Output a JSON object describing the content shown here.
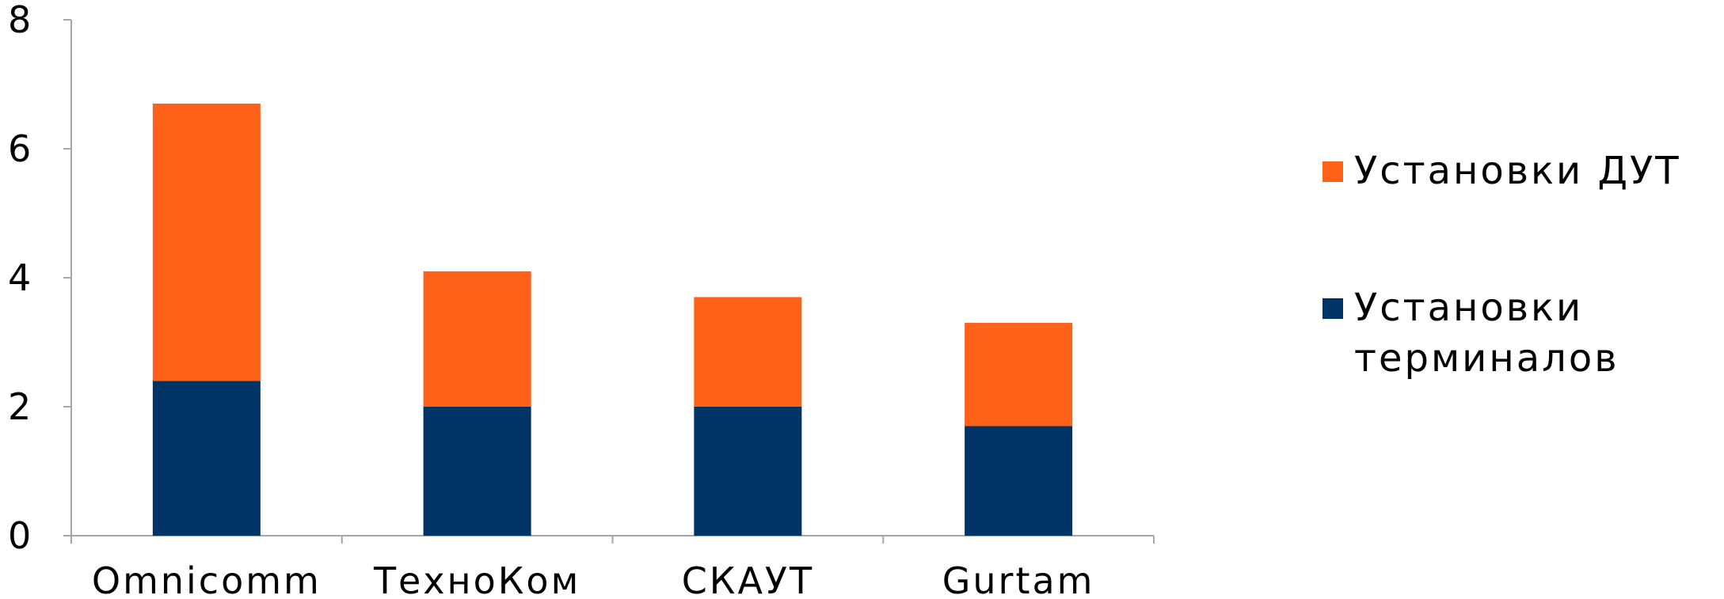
{
  "chart_data": {
    "type": "bar",
    "stacked": true,
    "title": "",
    "xlabel": "",
    "ylabel": "",
    "categories": [
      "Omnicomm",
      "ТехноКом",
      "СКАУТ",
      "Gurtam"
    ],
    "series": [
      {
        "name": "Установки терминалов",
        "color": "#003366",
        "values": [
          2.4,
          2.0,
          2.0,
          1.7
        ]
      },
      {
        "name": "Установки ДУТ",
        "color": "#FF6119",
        "values": [
          4.3,
          2.1,
          1.7,
          1.6
        ]
      }
    ],
    "ylim": [
      0,
      8
    ],
    "yticks": [
      0,
      2,
      4,
      6,
      8
    ],
    "grid": false,
    "legend": {
      "placement": "right",
      "order": [
        1,
        0
      ],
      "lines": [
        [
          "Установки ДУТ"
        ],
        [
          "Установки",
          "терминалов"
        ]
      ]
    }
  }
}
